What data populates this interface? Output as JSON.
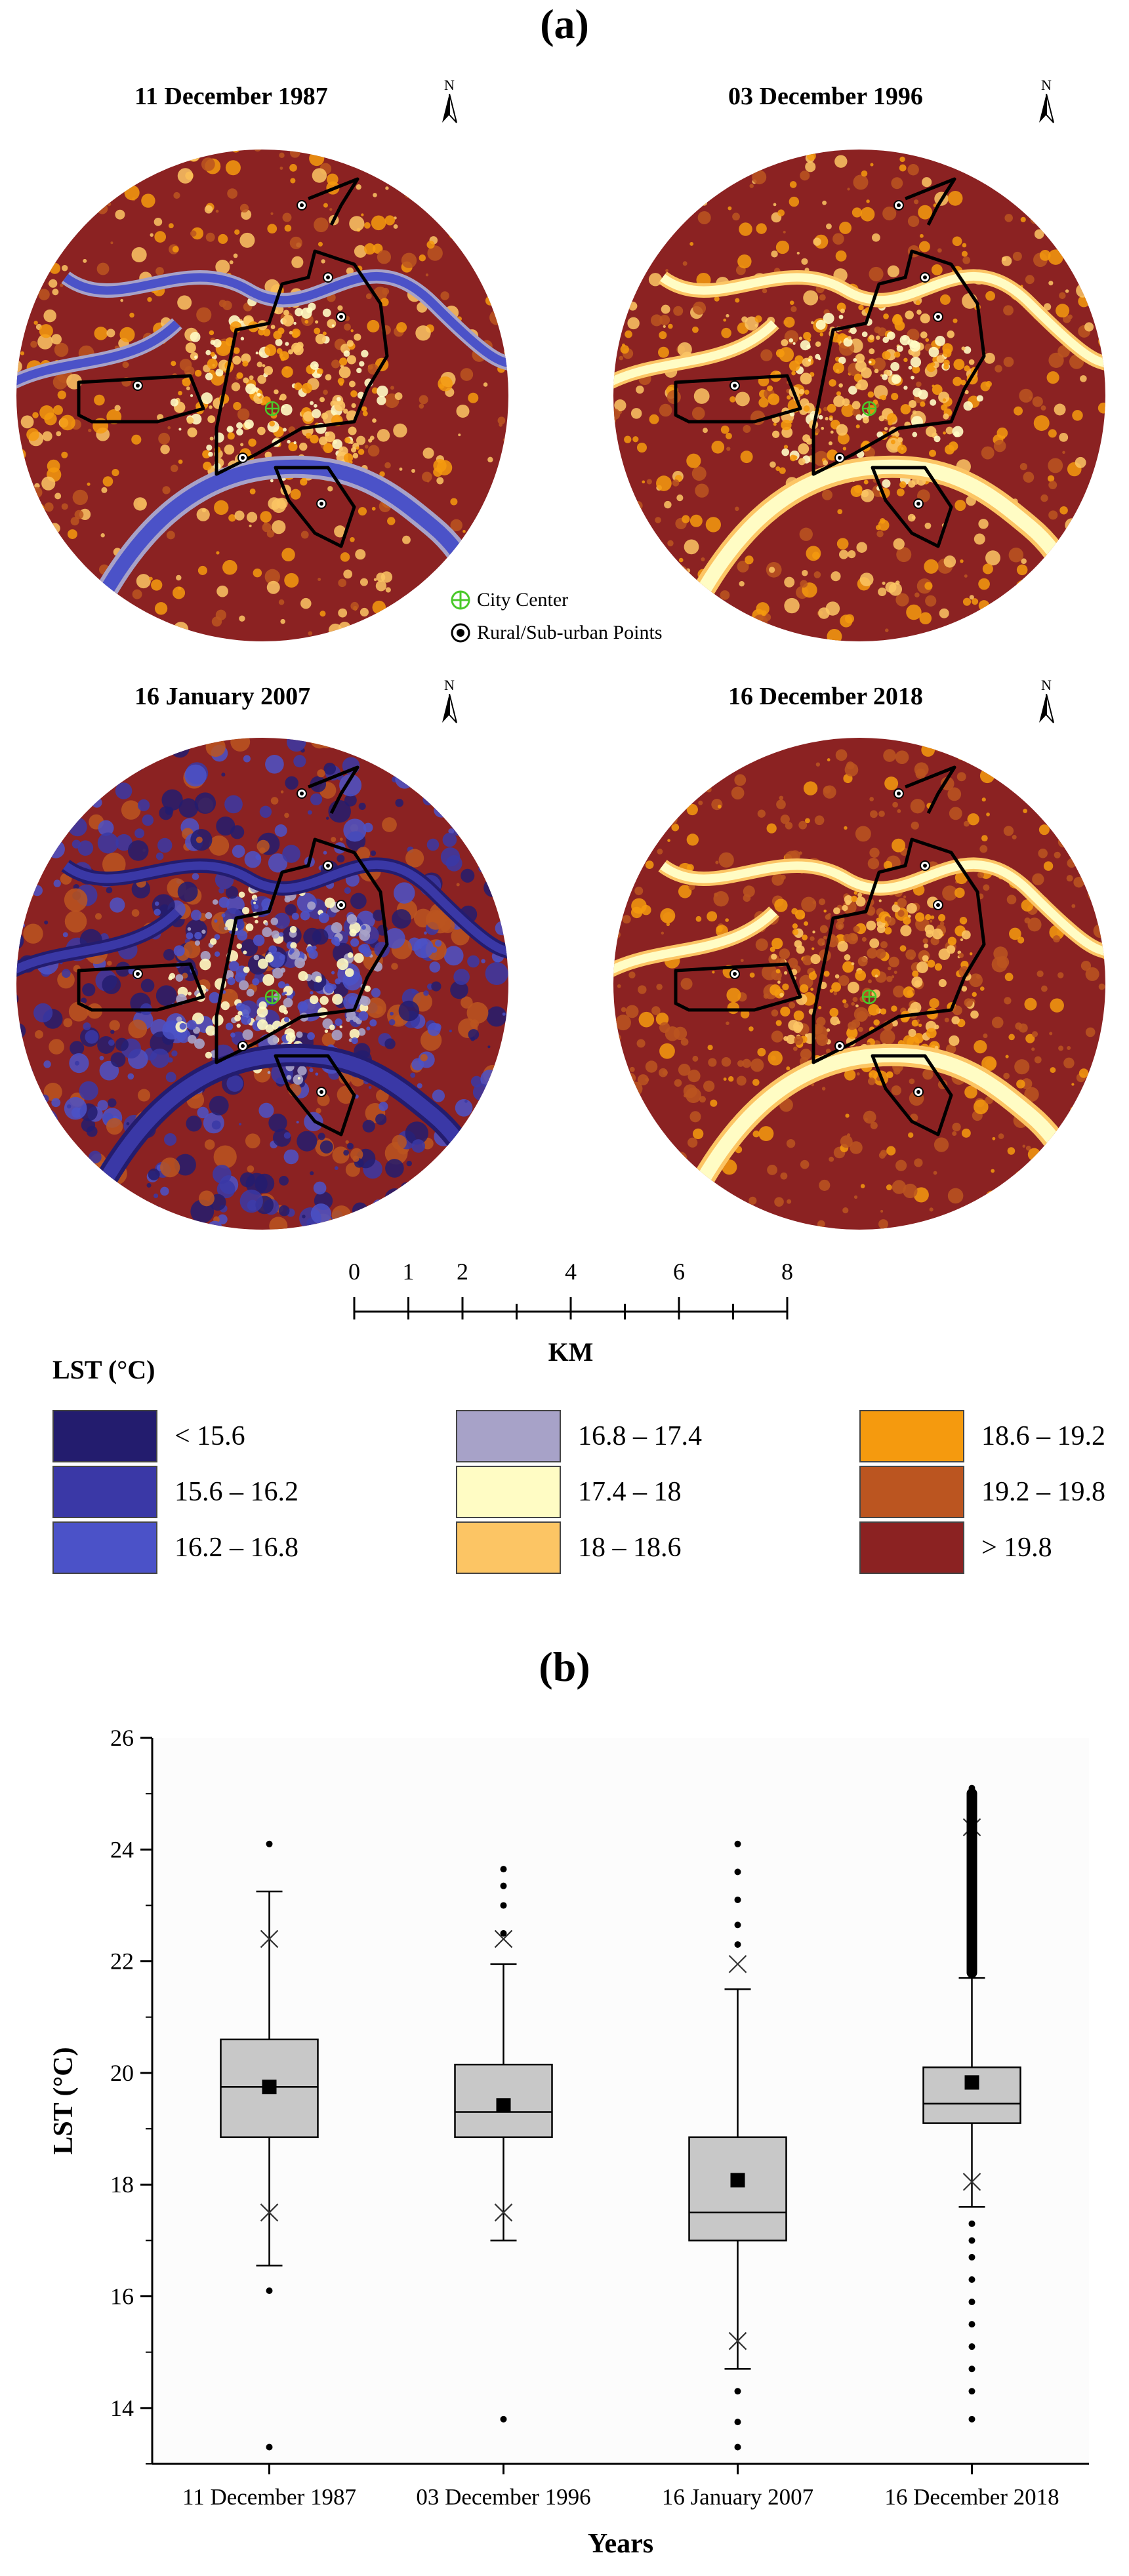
{
  "panel_a_label": "(a)",
  "panel_b_label": "(b)",
  "maps": [
    {
      "title": "11 December 1987",
      "scheme": "warm-blue"
    },
    {
      "title": "03 December 1996",
      "scheme": "warm-cream"
    },
    {
      "title": "16 January 2007",
      "scheme": "cool"
    },
    {
      "title": "16 December 2018",
      "scheme": "hot"
    }
  ],
  "north_label": "N",
  "map_legend": {
    "city_center": "City Center",
    "rural_points": "Rural/Sub-urban Points"
  },
  "scale_bar": {
    "ticks": [
      "0",
      "1",
      "2",
      "4",
      "6",
      "8"
    ],
    "unit": "KM"
  },
  "lst_legend": {
    "title": "LST (°C)",
    "items": [
      {
        "label": "< 15.6",
        "color": "#231c6e"
      },
      {
        "label": "15.6 – 16.2",
        "color": "#3a38a6"
      },
      {
        "label": "16.2 – 16.8",
        "color": "#4b52c8"
      },
      {
        "label": "16.8 – 17.4",
        "color": "#a7a2c8"
      },
      {
        "label": "17.4 – 18",
        "color": "#fffcc4"
      },
      {
        "label": "18 – 18.6",
        "color": "#fcc564"
      },
      {
        "label": "18.6 – 19.2",
        "color": "#f59a0e"
      },
      {
        "label": "19.2 – 19.8",
        "color": "#bb5520"
      },
      {
        "label": "> 19.8",
        "color": "#8b2222"
      }
    ]
  },
  "chart_data": {
    "type": "box",
    "xlabel": "Years",
    "ylabel": "LST (°C)",
    "ylim": [
      13,
      26
    ],
    "yticks": [
      "14",
      "16",
      "18",
      "20",
      "22",
      "24",
      "26"
    ],
    "categories": [
      "11 December 1987",
      "03 December 1996",
      "16 January 2007",
      "16 December 2018"
    ],
    "boxes": [
      {
        "min": 16.55,
        "q1": 18.85,
        "median": 19.75,
        "q3": 20.6,
        "max": 23.25,
        "mean": 19.75,
        "p1": 17.5,
        "p99": 22.4,
        "outliers": [
          16.1,
          13.3,
          24.1
        ]
      },
      {
        "min": 17.0,
        "q1": 18.85,
        "median": 19.3,
        "q3": 20.15,
        "max": 21.95,
        "mean": 19.42,
        "p1": 17.5,
        "p99": 22.4,
        "outliers": [
          13.8,
          22.5,
          23.0,
          23.35,
          23.65
        ]
      },
      {
        "min": 14.7,
        "q1": 17.0,
        "median": 17.5,
        "q3": 18.85,
        "max": 21.5,
        "mean": 18.08,
        "p1": 15.2,
        "p99": 21.95,
        "outliers": [
          13.3,
          13.75,
          14.3,
          22.3,
          22.65,
          23.1,
          23.6,
          24.1
        ]
      },
      {
        "min": 17.6,
        "q1": 19.1,
        "median": 19.45,
        "q3": 20.1,
        "max": 21.7,
        "mean": 19.83,
        "p1": 18.05,
        "p99": 24.4,
        "outliers": [
          13.8,
          14.3,
          14.7,
          15.1,
          15.5,
          15.9,
          16.3,
          16.7,
          17.0,
          17.3,
          21.9,
          22.3,
          22.7,
          23.1,
          23.5,
          23.9,
          24.3,
          24.7,
          25.1
        ]
      }
    ]
  }
}
